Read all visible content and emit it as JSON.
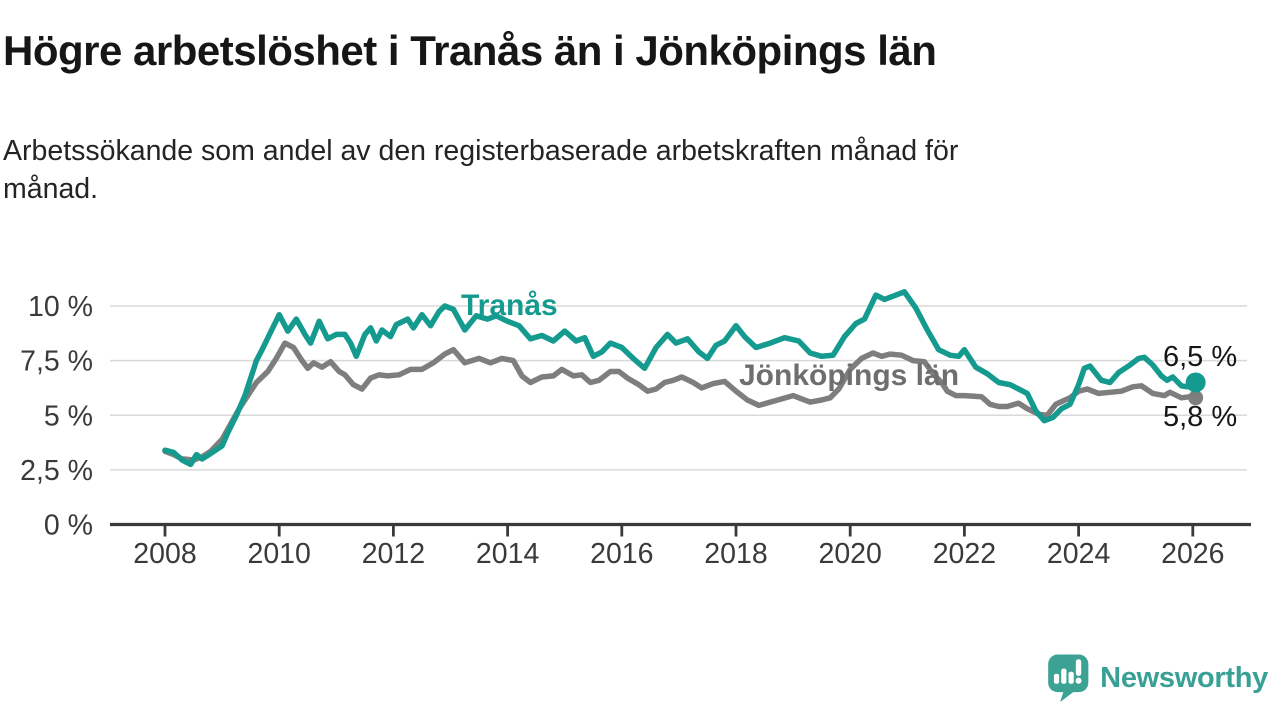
{
  "header": {
    "title": "Högre arbetslöshet i Tranås än i Jönköpings län",
    "subtitle": "Arbetssökande som andel av den registerbaserade arbetskraften månad för\nmånad."
  },
  "branding": {
    "logo_text": "Newsworthy",
    "logo_icon": "newsworthy-chart-bubble-icon",
    "logo_color": "#3ba294"
  },
  "chart_data": {
    "type": "line",
    "title": "Högre arbetslöshet i Tranås än i Jönköpings län",
    "xlabel": "",
    "ylabel": "",
    "xlim": [
      2007.8,
      2026.6
    ],
    "ylim": [
      0,
      11
    ],
    "grid": true,
    "x_ticks": [
      {
        "value": 2008,
        "label": "2008"
      },
      {
        "value": 2010,
        "label": "2010"
      },
      {
        "value": 2012,
        "label": "2012"
      },
      {
        "value": 2014,
        "label": "2014"
      },
      {
        "value": 2016,
        "label": "2016"
      },
      {
        "value": 2018,
        "label": "2018"
      },
      {
        "value": 2020,
        "label": "2020"
      },
      {
        "value": 2022,
        "label": "2022"
      },
      {
        "value": 2024,
        "label": "2024"
      },
      {
        "value": 2026,
        "label": "2026"
      }
    ],
    "y_ticks": [
      {
        "value": 0,
        "label": "0 %"
      },
      {
        "value": 2.5,
        "label": "2,5 %"
      },
      {
        "value": 5,
        "label": "5 %"
      },
      {
        "value": 7.5,
        "label": "7,5 %"
      },
      {
        "value": 10,
        "label": "10 %"
      }
    ],
    "series": [
      {
        "name": "Tranås",
        "label": "Tranås",
        "color": "#149a8e",
        "end_label": "6,5 %",
        "end_value": 6.5,
        "points": [
          [
            2008.0,
            3.4
          ],
          [
            2008.15,
            3.3
          ],
          [
            2008.3,
            2.95
          ],
          [
            2008.45,
            2.75
          ],
          [
            2008.55,
            3.2
          ],
          [
            2008.65,
            3.0
          ],
          [
            2008.8,
            3.25
          ],
          [
            2009.0,
            3.6
          ],
          [
            2009.1,
            4.2
          ],
          [
            2009.25,
            5.0
          ],
          [
            2009.4,
            5.9
          ],
          [
            2009.5,
            6.7
          ],
          [
            2009.6,
            7.5
          ],
          [
            2009.7,
            8.0
          ],
          [
            2009.85,
            8.8
          ],
          [
            2010.0,
            9.6
          ],
          [
            2010.15,
            8.85
          ],
          [
            2010.3,
            9.4
          ],
          [
            2010.45,
            8.7
          ],
          [
            2010.55,
            8.3
          ],
          [
            2010.7,
            9.3
          ],
          [
            2010.85,
            8.5
          ],
          [
            2011.0,
            8.7
          ],
          [
            2011.15,
            8.7
          ],
          [
            2011.25,
            8.3
          ],
          [
            2011.35,
            7.7
          ],
          [
            2011.5,
            8.7
          ],
          [
            2011.6,
            9.0
          ],
          [
            2011.7,
            8.4
          ],
          [
            2011.8,
            8.9
          ],
          [
            2011.95,
            8.6
          ],
          [
            2012.05,
            9.15
          ],
          [
            2012.25,
            9.4
          ],
          [
            2012.35,
            9.0
          ],
          [
            2012.5,
            9.6
          ],
          [
            2012.65,
            9.1
          ],
          [
            2012.8,
            9.75
          ],
          [
            2012.9,
            10.0
          ],
          [
            2013.05,
            9.85
          ],
          [
            2013.25,
            8.9
          ],
          [
            2013.45,
            9.55
          ],
          [
            2013.65,
            9.4
          ],
          [
            2013.8,
            9.55
          ],
          [
            2014.0,
            9.3
          ],
          [
            2014.2,
            9.1
          ],
          [
            2014.4,
            8.5
          ],
          [
            2014.6,
            8.65
          ],
          [
            2014.8,
            8.4
          ],
          [
            2015.0,
            8.85
          ],
          [
            2015.2,
            8.4
          ],
          [
            2015.35,
            8.55
          ],
          [
            2015.5,
            7.7
          ],
          [
            2015.65,
            7.9
          ],
          [
            2015.8,
            8.3
          ],
          [
            2016.0,
            8.1
          ],
          [
            2016.2,
            7.6
          ],
          [
            2016.4,
            7.15
          ],
          [
            2016.6,
            8.1
          ],
          [
            2016.8,
            8.7
          ],
          [
            2016.95,
            8.3
          ],
          [
            2017.15,
            8.5
          ],
          [
            2017.35,
            7.9
          ],
          [
            2017.5,
            7.6
          ],
          [
            2017.65,
            8.2
          ],
          [
            2017.8,
            8.4
          ],
          [
            2018.0,
            9.1
          ],
          [
            2018.15,
            8.6
          ],
          [
            2018.35,
            8.1
          ],
          [
            2018.6,
            8.3
          ],
          [
            2018.85,
            8.55
          ],
          [
            2019.1,
            8.4
          ],
          [
            2019.3,
            7.85
          ],
          [
            2019.5,
            7.7
          ],
          [
            2019.7,
            7.75
          ],
          [
            2019.9,
            8.6
          ],
          [
            2020.1,
            9.2
          ],
          [
            2020.25,
            9.4
          ],
          [
            2020.45,
            10.5
          ],
          [
            2020.6,
            10.3
          ],
          [
            2020.75,
            10.45
          ],
          [
            2020.95,
            10.65
          ],
          [
            2021.15,
            9.9
          ],
          [
            2021.35,
            8.9
          ],
          [
            2021.55,
            8.0
          ],
          [
            2021.75,
            7.75
          ],
          [
            2021.9,
            7.7
          ],
          [
            2022.0,
            8.0
          ],
          [
            2022.2,
            7.2
          ],
          [
            2022.4,
            6.9
          ],
          [
            2022.6,
            6.5
          ],
          [
            2022.8,
            6.4
          ],
          [
            2022.95,
            6.2
          ],
          [
            2023.1,
            6.0
          ],
          [
            2023.25,
            5.2
          ],
          [
            2023.4,
            4.75
          ],
          [
            2023.55,
            4.9
          ],
          [
            2023.7,
            5.3
          ],
          [
            2023.85,
            5.5
          ],
          [
            2024.0,
            6.4
          ],
          [
            2024.1,
            7.15
          ],
          [
            2024.2,
            7.25
          ],
          [
            2024.4,
            6.6
          ],
          [
            2024.55,
            6.5
          ],
          [
            2024.7,
            6.95
          ],
          [
            2024.9,
            7.3
          ],
          [
            2025.05,
            7.6
          ],
          [
            2025.15,
            7.65
          ],
          [
            2025.3,
            7.3
          ],
          [
            2025.45,
            6.8
          ],
          [
            2025.55,
            6.6
          ],
          [
            2025.65,
            6.75
          ],
          [
            2025.8,
            6.35
          ],
          [
            2025.9,
            6.3
          ],
          [
            2026.05,
            6.5
          ]
        ]
      },
      {
        "name": "Jönköpings län",
        "label": "Jönköpings län",
        "color": "#7e7e7e",
        "end_label": "5,8 %",
        "end_value": 5.8,
        "points": [
          [
            2008.0,
            3.35
          ],
          [
            2008.15,
            3.2
          ],
          [
            2008.3,
            3.0
          ],
          [
            2008.5,
            2.95
          ],
          [
            2008.65,
            3.1
          ],
          [
            2008.8,
            3.35
          ],
          [
            2009.0,
            3.9
          ],
          [
            2009.15,
            4.6
          ],
          [
            2009.3,
            5.3
          ],
          [
            2009.45,
            5.9
          ],
          [
            2009.6,
            6.5
          ],
          [
            2009.8,
            7.0
          ],
          [
            2009.95,
            7.6
          ],
          [
            2010.1,
            8.3
          ],
          [
            2010.25,
            8.1
          ],
          [
            2010.4,
            7.5
          ],
          [
            2010.5,
            7.15
          ],
          [
            2010.6,
            7.4
          ],
          [
            2010.75,
            7.2
          ],
          [
            2010.9,
            7.45
          ],
          [
            2011.05,
            7.0
          ],
          [
            2011.15,
            6.85
          ],
          [
            2011.3,
            6.4
          ],
          [
            2011.45,
            6.2
          ],
          [
            2011.6,
            6.7
          ],
          [
            2011.75,
            6.85
          ],
          [
            2011.9,
            6.8
          ],
          [
            2012.1,
            6.85
          ],
          [
            2012.3,
            7.1
          ],
          [
            2012.5,
            7.1
          ],
          [
            2012.7,
            7.4
          ],
          [
            2012.9,
            7.8
          ],
          [
            2013.05,
            8.0
          ],
          [
            2013.25,
            7.4
          ],
          [
            2013.5,
            7.6
          ],
          [
            2013.7,
            7.4
          ],
          [
            2013.9,
            7.6
          ],
          [
            2014.1,
            7.5
          ],
          [
            2014.25,
            6.8
          ],
          [
            2014.4,
            6.5
          ],
          [
            2014.6,
            6.75
          ],
          [
            2014.8,
            6.8
          ],
          [
            2014.95,
            7.1
          ],
          [
            2015.15,
            6.8
          ],
          [
            2015.3,
            6.85
          ],
          [
            2015.45,
            6.5
          ],
          [
            2015.6,
            6.6
          ],
          [
            2015.8,
            7.0
          ],
          [
            2015.95,
            7.0
          ],
          [
            2016.1,
            6.7
          ],
          [
            2016.3,
            6.4
          ],
          [
            2016.45,
            6.1
          ],
          [
            2016.6,
            6.2
          ],
          [
            2016.75,
            6.5
          ],
          [
            2016.9,
            6.6
          ],
          [
            2017.05,
            6.75
          ],
          [
            2017.25,
            6.5
          ],
          [
            2017.4,
            6.25
          ],
          [
            2017.6,
            6.45
          ],
          [
            2017.8,
            6.55
          ],
          [
            2018.0,
            6.1
          ],
          [
            2018.2,
            5.7
          ],
          [
            2018.4,
            5.45
          ],
          [
            2018.6,
            5.6
          ],
          [
            2018.8,
            5.75
          ],
          [
            2019.0,
            5.9
          ],
          [
            2019.15,
            5.75
          ],
          [
            2019.3,
            5.6
          ],
          [
            2019.5,
            5.7
          ],
          [
            2019.65,
            5.8
          ],
          [
            2019.8,
            6.2
          ],
          [
            2020.0,
            7.1
          ],
          [
            2020.2,
            7.6
          ],
          [
            2020.4,
            7.85
          ],
          [
            2020.55,
            7.7
          ],
          [
            2020.7,
            7.8
          ],
          [
            2020.9,
            7.75
          ],
          [
            2021.1,
            7.5
          ],
          [
            2021.3,
            7.45
          ],
          [
            2021.45,
            6.9
          ],
          [
            2021.6,
            6.5
          ],
          [
            2021.7,
            6.1
          ],
          [
            2021.85,
            5.9
          ],
          [
            2022.0,
            5.9
          ],
          [
            2022.3,
            5.85
          ],
          [
            2022.45,
            5.5
          ],
          [
            2022.6,
            5.4
          ],
          [
            2022.75,
            5.4
          ],
          [
            2022.95,
            5.55
          ],
          [
            2023.1,
            5.3
          ],
          [
            2023.3,
            5.05
          ],
          [
            2023.45,
            5.0
          ],
          [
            2023.6,
            5.5
          ],
          [
            2023.85,
            5.8
          ],
          [
            2024.0,
            6.1
          ],
          [
            2024.15,
            6.2
          ],
          [
            2024.35,
            6.0
          ],
          [
            2024.55,
            6.05
          ],
          [
            2024.75,
            6.1
          ],
          [
            2024.95,
            6.3
          ],
          [
            2025.1,
            6.35
          ],
          [
            2025.3,
            6.0
          ],
          [
            2025.5,
            5.9
          ],
          [
            2025.6,
            6.05
          ],
          [
            2025.8,
            5.8
          ],
          [
            2025.95,
            5.85
          ],
          [
            2026.05,
            5.8
          ]
        ]
      }
    ],
    "style": {
      "grid_color": "#d9d9d9",
      "axis_color": "#3a3a3a",
      "line_width": 5.5
    }
  }
}
